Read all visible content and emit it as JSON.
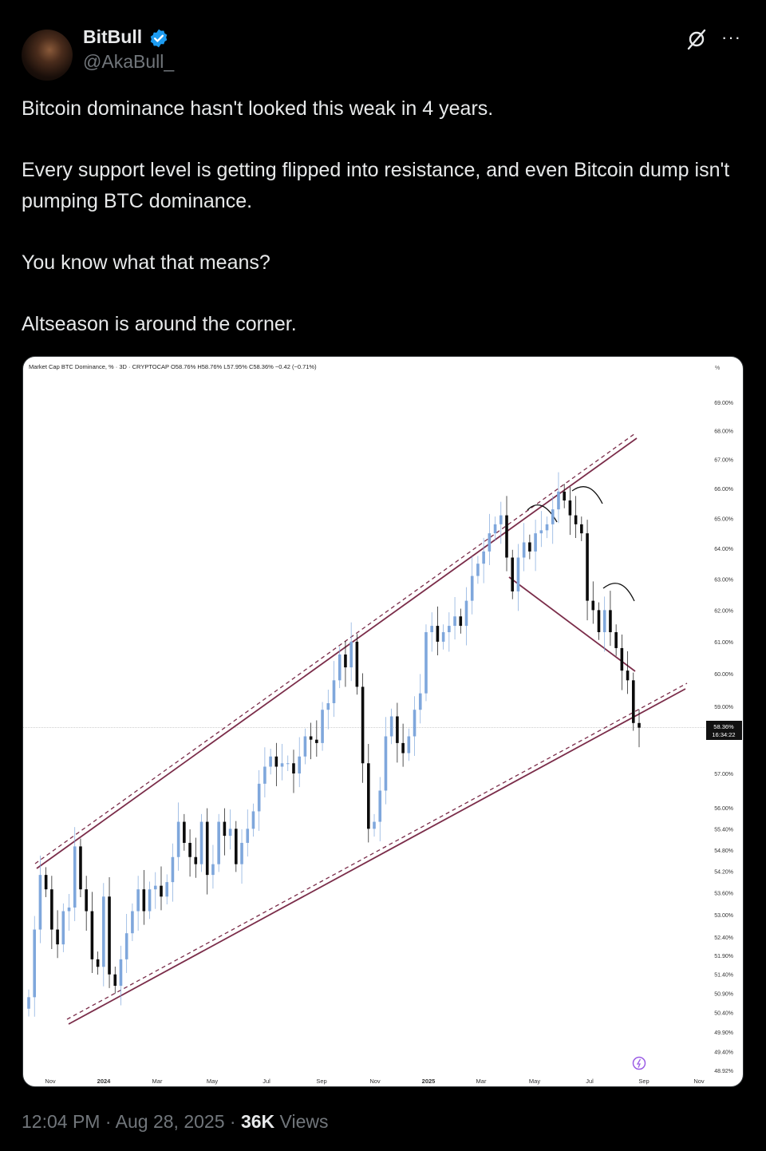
{
  "tweet": {
    "author_name": "BitBull",
    "author_handle": "@AkaBull_",
    "verified": true,
    "paragraphs": [
      "Bitcoin dominance hasn't looked this weak in 4 years.",
      "Every support level is getting flipped into resistance, and even Bitcoin dump isn't pumping BTC dominance.",
      "You know what that means?",
      "Altseason is around the corner."
    ],
    "time": "12:04 PM",
    "date": "Aug 28, 2025",
    "separator": "·",
    "views_count": "36K",
    "views_label": "Views",
    "icons": {
      "verified": "verified-badge-icon",
      "grok": "grok-icon",
      "more": "more-icon"
    },
    "more_label": "···"
  },
  "chart_data": {
    "type": "candlestick",
    "header": "Market Cap BTC Dominance, % · 3D · CRYPTOCAP  O58.76%  H58.76%  L57.95%  C58.36%  −0.42 (−0.71%)",
    "unit_label": "%",
    "scale": "log",
    "period": "3D",
    "x_tick_labels": [
      "Nov",
      "2024",
      "Mar",
      "May",
      "Jul",
      "Sep",
      "Nov",
      "2025",
      "Mar",
      "May",
      "Jul",
      "Sep",
      "Nov"
    ],
    "y_tick_labels": [
      "69.00%",
      "68.00%",
      "67.00%",
      "66.00%",
      "65.00%",
      "64.00%",
      "63.00%",
      "62.00%",
      "61.00%",
      "60.00%",
      "59.00%",
      "57.00%",
      "56.00%",
      "55.40%",
      "54.80%",
      "54.20%",
      "53.60%",
      "53.00%",
      "52.40%",
      "51.90%",
      "51.40%",
      "50.90%",
      "50.40%",
      "49.90%",
      "49.40%",
      "48.92%"
    ],
    "y_tick_values": [
      69,
      68,
      67,
      66,
      65,
      64,
      63,
      62,
      61,
      60,
      59,
      57,
      56,
      55.4,
      54.8,
      54.2,
      53.6,
      53,
      52.4,
      51.9,
      51.4,
      50.9,
      50.4,
      49.9,
      49.4,
      48.92
    ],
    "last_price_label": "58.36%",
    "countdown_label": "16:34:22",
    "last_value": 58.36,
    "closes": [
      50.8,
      52.6,
      54.1,
      53.7,
      52.6,
      52.2,
      53.1,
      53.2,
      54.9,
      53.7,
      53.1,
      51.8,
      51.6,
      53.5,
      51.4,
      51.1,
      51.8,
      52.5,
      53.1,
      53.7,
      53.1,
      53.7,
      53.8,
      53.5,
      53.9,
      54.6,
      55.6,
      55.0,
      54.6,
      54.4,
      55.6,
      54.1,
      54.4,
      55.6,
      55.2,
      55.4,
      54.4,
      55.0,
      55.4,
      55.9,
      56.7,
      57.2,
      57.5,
      57.2,
      57.3,
      57.3,
      57.0,
      57.5,
      58.1,
      58.0,
      57.9,
      58.9,
      59.1,
      59.8,
      60.6,
      60.2,
      61.0,
      59.6,
      57.3,
      55.4,
      55.6,
      56.5,
      58.1,
      58.7,
      57.9,
      57.6,
      58.1,
      58.9,
      59.4,
      61.3,
      61.5,
      61.0,
      61.3,
      61.5,
      61.8,
      61.5,
      62.3,
      63.1,
      63.5,
      63.9,
      64.5,
      64.8,
      65.1,
      63.7,
      62.6,
      63.7,
      64.2,
      63.9,
      64.5,
      64.6,
      64.8,
      65.3,
      65.9,
      65.6,
      65.1,
      64.8,
      64.5,
      62.3,
      62.0,
      61.3,
      62.0,
      61.3,
      60.8,
      60.1,
      59.8,
      58.5,
      58.36
    ],
    "colors": {
      "up": "#7fa7dc",
      "down": "#0b0b0b",
      "channel": "#7b2d4a",
      "neckline": "#7b2d4a",
      "arcs": "#111111",
      "price_line": "#9e9e9e"
    },
    "annotations": [
      "ascending channel (dashed borders)",
      "neckline",
      "three rounded tops"
    ],
    "grid": false
  }
}
